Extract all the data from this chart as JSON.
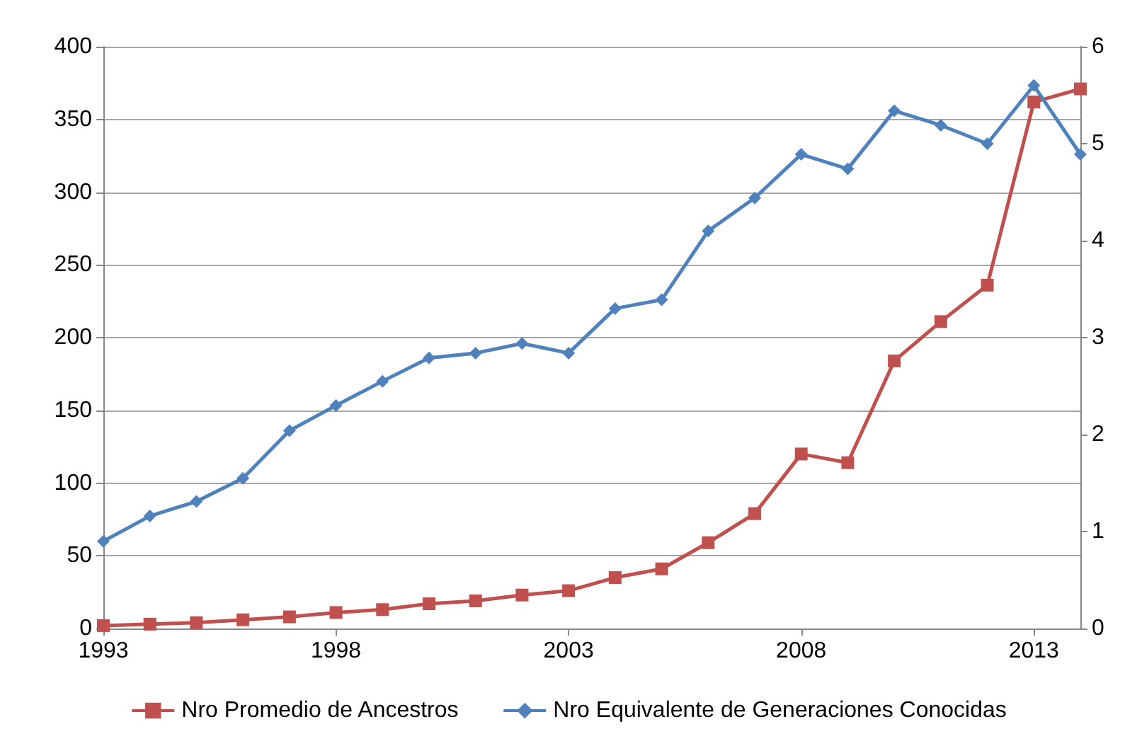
{
  "chart_data": {
    "type": "line",
    "x": [
      1993,
      1994,
      1995,
      1996,
      1997,
      1998,
      1999,
      2000,
      2001,
      2002,
      2003,
      2004,
      2005,
      2006,
      2007,
      2008,
      2009,
      2010,
      2011,
      2012,
      2013,
      2014
    ],
    "xlim": [
      1993,
      2014
    ],
    "xticks": [
      1993,
      1998,
      2003,
      2008,
      2013
    ],
    "ylim": [
      0,
      400
    ],
    "yticks": [
      0,
      50,
      100,
      150,
      200,
      250,
      300,
      350,
      400
    ],
    "y2lim": [
      0,
      6
    ],
    "y2ticks": [
      0,
      1,
      2,
      3,
      4,
      5,
      6
    ],
    "grid": "y",
    "legend": "bottom",
    "series": [
      {
        "name": "Nro Promedio de Ancestros",
        "color": "#c0504d",
        "marker": "square",
        "values": [
          2,
          3,
          4,
          6,
          8,
          11,
          13,
          17,
          19,
          23,
          26,
          35,
          41,
          59,
          79,
          120,
          114,
          184,
          211,
          236,
          362,
          371
        ]
      },
      {
        "name": "Nro Equivalente de Generaciones Conocidas",
        "color": "#4f81bd",
        "marker": "diamond",
        "axis": "y2",
        "values": [
          0.9,
          1.16,
          1.31,
          1.55,
          2.04,
          2.3,
          2.55,
          2.79,
          2.84,
          2.94,
          2.84,
          3.3,
          3.39,
          4.1,
          4.44,
          4.89,
          4.74,
          5.34,
          5.19,
          5.0,
          5.6,
          4.89
        ]
      }
    ]
  }
}
